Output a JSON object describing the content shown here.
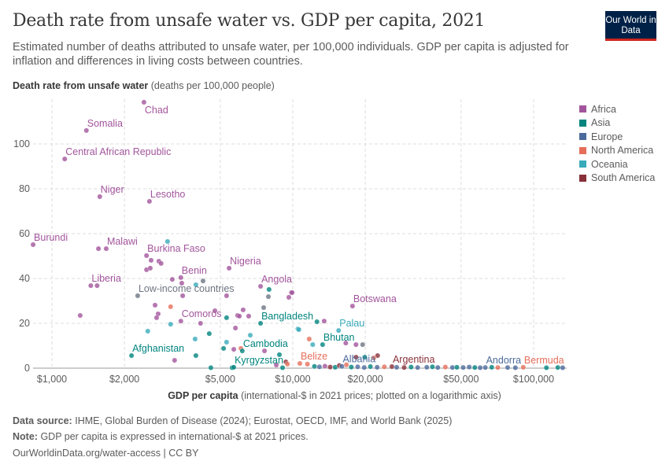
{
  "header": {
    "title": "Death rate from unsafe water vs. GDP per capita, 2021",
    "subtitle": "Estimated number of deaths attributed to unsafe water, per 100,000 individuals. GDP per capita is adjusted for inflation and differences in living costs between countries.",
    "logo": "Our World in Data"
  },
  "colors": {
    "Africa": "#a2559c",
    "Asia": "#00847e",
    "Europe": "#4c6a9c",
    "North America": "#e56e5a",
    "Oceania": "#38aaba",
    "South America": "#883039",
    "Aggregate": "#6e7581"
  },
  "chart_data": {
    "type": "scatter",
    "title": "Death rate from unsafe water vs. GDP per capita, 2021",
    "ylabel": {
      "bold": "Death rate from unsafe water",
      "rest": "(deaths per 100,000 people)"
    },
    "xlabel": {
      "bold": "GDP per capita",
      "rest": "(international-$ in 2021 prices; plotted on a logarithmic axis)"
    },
    "xscale": "log",
    "xlim": [
      810,
      137000
    ],
    "ylim": [
      0,
      120
    ],
    "grid": true,
    "legend_position": "right",
    "xticks": [
      {
        "v": 1000,
        "l": "$1,000"
      },
      {
        "v": 2000,
        "l": "$2,000"
      },
      {
        "v": 5000,
        "l": "$5,000"
      },
      {
        "v": 10000,
        "l": "$10,000"
      },
      {
        "v": 20000,
        "l": "$20,000"
      },
      {
        "v": 50000,
        "l": "$50,000"
      },
      {
        "v": 100000,
        "l": "$100,000"
      }
    ],
    "yticks": [
      {
        "v": 0,
        "l": "0"
      },
      {
        "v": 20,
        "l": "20"
      },
      {
        "v": 40,
        "l": "40"
      },
      {
        "v": 60,
        "l": "60"
      },
      {
        "v": 80,
        "l": "80"
      },
      {
        "v": 100,
        "l": "100"
      }
    ],
    "legend": [
      "Africa",
      "Asia",
      "Europe",
      "North America",
      "Oceania",
      "South America"
    ],
    "points": [
      [
        2410,
        118.6,
        "Africa",
        "Chad"
      ],
      [
        1390,
        106,
        "Africa",
        "Somalia"
      ],
      [
        1130,
        93.3,
        "Africa",
        "Central African Republic"
      ],
      [
        1580,
        76.5,
        "Africa",
        "Niger"
      ],
      [
        2540,
        74.4,
        "Africa",
        "Lesotho"
      ],
      [
        835,
        55.1,
        "Africa",
        "Burundi"
      ],
      [
        1680,
        53.3,
        "Africa",
        "Malawi"
      ],
      [
        1560,
        53.3,
        "Africa",
        ""
      ],
      [
        2470,
        50.2,
        "Africa",
        "Burkina Faso"
      ],
      [
        3020,
        56.5,
        "Oceania",
        ""
      ],
      [
        2580,
        48.1,
        "Africa",
        ""
      ],
      [
        2780,
        47.7,
        "Africa",
        ""
      ],
      [
        2840,
        46.7,
        "Africa",
        ""
      ],
      [
        2470,
        43.9,
        "Africa",
        ""
      ],
      [
        2560,
        44.6,
        "Africa",
        ""
      ],
      [
        5440,
        44.6,
        "Africa",
        "Nigeria"
      ],
      [
        3160,
        39.6,
        "Africa",
        ""
      ],
      [
        3430,
        40.4,
        "Africa",
        "Benin"
      ],
      [
        3460,
        37.9,
        "Africa",
        ""
      ],
      [
        4240,
        38.9,
        "Aggregate",
        ""
      ],
      [
        3960,
        37.2,
        "Oceania",
        ""
      ],
      [
        1450,
        36.8,
        "Africa",
        "Liberia"
      ],
      [
        1540,
        36.8,
        "Africa",
        ""
      ],
      [
        2270,
        32.3,
        "Aggregate",
        "Low-income countries"
      ],
      [
        3490,
        32.3,
        "Africa",
        ""
      ],
      [
        1310,
        23.5,
        "Africa",
        ""
      ],
      [
        2680,
        28.1,
        "Africa",
        ""
      ],
      [
        3110,
        27.4,
        "North America",
        ""
      ],
      [
        2760,
        24.2,
        "Africa",
        ""
      ],
      [
        2720,
        22.5,
        "Africa",
        ""
      ],
      [
        4750,
        25.6,
        "Africa",
        ""
      ],
      [
        5310,
        32.3,
        "Africa",
        ""
      ],
      [
        7350,
        36.5,
        "Africa",
        "Angola"
      ],
      [
        7970,
        35.1,
        "Asia",
        ""
      ],
      [
        7920,
        31.9,
        "Aggregate",
        ""
      ],
      [
        9860,
        33.7,
        "Africa",
        ""
      ],
      [
        9630,
        31.6,
        "Africa",
        ""
      ],
      [
        7570,
        27,
        "Aggregate",
        ""
      ],
      [
        3430,
        21,
        "Africa",
        "Comoros"
      ],
      [
        4140,
        20,
        "Africa",
        ""
      ],
      [
        5310,
        22.5,
        "Asia",
        ""
      ],
      [
        5900,
        23.5,
        "Africa",
        ""
      ],
      [
        6000,
        23.2,
        "Africa",
        ""
      ],
      [
        6220,
        26,
        "Africa",
        ""
      ],
      [
        6560,
        23.2,
        "Africa",
        ""
      ],
      [
        7350,
        20,
        "Asia",
        "Bangladesh"
      ],
      [
        2500,
        16.5,
        "Oceania",
        ""
      ],
      [
        3110,
        19.6,
        "Oceania",
        ""
      ],
      [
        5780,
        17.9,
        "Africa",
        ""
      ],
      [
        4500,
        15.4,
        "Asia",
        ""
      ],
      [
        3930,
        13,
        "Oceania",
        ""
      ],
      [
        6660,
        14.7,
        "Oceania",
        ""
      ],
      [
        5310,
        11.6,
        "Oceania",
        ""
      ],
      [
        5690,
        8.4,
        "Africa",
        ""
      ],
      [
        6090,
        8.8,
        "North America",
        ""
      ],
      [
        6170,
        7.7,
        "Asia",
        "Cambodia"
      ],
      [
        5160,
        8.8,
        "Asia",
        ""
      ],
      [
        7630,
        7.7,
        "Africa",
        ""
      ],
      [
        2140,
        5.6,
        "Asia",
        "Afghanistan"
      ],
      [
        3230,
        3.5,
        "Africa",
        ""
      ],
      [
        3960,
        5.6,
        "Asia",
        ""
      ],
      [
        8800,
        6,
        "Asia",
        ""
      ],
      [
        9360,
        2.8,
        "South America",
        ""
      ],
      [
        9500,
        1.8,
        "North America",
        ""
      ],
      [
        8540,
        1.4,
        "Africa",
        ""
      ],
      [
        4570,
        0.2,
        "Asia",
        ""
      ],
      [
        5600,
        0.2,
        "Asia",
        ""
      ],
      [
        5690,
        0.4,
        "Asia",
        "Kyrgyzstan"
      ],
      [
        9070,
        0.2,
        "Asia",
        ""
      ],
      [
        10500,
        17.5,
        "Oceania",
        ""
      ],
      [
        9930,
        33.7,
        "Africa",
        ""
      ],
      [
        17700,
        27.7,
        "Africa",
        "Botswana"
      ],
      [
        12600,
        20.7,
        "Asia",
        ""
      ],
      [
        13500,
        21,
        "Africa",
        ""
      ],
      [
        10600,
        17.2,
        "Oceania",
        ""
      ],
      [
        15500,
        16.8,
        "Oceania",
        "Palau"
      ],
      [
        11700,
        13,
        "North America",
        ""
      ],
      [
        12100,
        10.5,
        "Oceania",
        ""
      ],
      [
        13300,
        10.5,
        "Asia",
        "Bhutan"
      ],
      [
        16600,
        11.2,
        "Africa",
        ""
      ],
      [
        18300,
        10.5,
        "Africa",
        ""
      ],
      [
        19500,
        10.5,
        "Aggregate",
        ""
      ],
      [
        10700,
        2.1,
        "North America",
        "Belize"
      ],
      [
        11500,
        1.8,
        "North America",
        ""
      ],
      [
        22500,
        5.6,
        "South America",
        ""
      ],
      [
        18300,
        4.9,
        "South America",
        ""
      ],
      [
        19900,
        4.9,
        "Asia",
        ""
      ],
      [
        21700,
        4.6,
        "North America",
        ""
      ],
      [
        12300,
        0.8,
        "Asia",
        ""
      ],
      [
        12900,
        0.6,
        "Europe",
        ""
      ],
      [
        13600,
        0.9,
        "Africa",
        ""
      ],
      [
        14300,
        0.5,
        "South America",
        ""
      ],
      [
        15000,
        0.4,
        "Asia",
        ""
      ],
      [
        15600,
        1.2,
        "South America",
        ""
      ],
      [
        16000,
        0.8,
        "Europe",
        "Albania"
      ],
      [
        16700,
        1.5,
        "North America",
        ""
      ],
      [
        17500,
        0.5,
        "Asia",
        ""
      ],
      [
        18600,
        0.6,
        "Europe",
        ""
      ],
      [
        19800,
        0.3,
        "Europe",
        ""
      ],
      [
        21000,
        0.7,
        "Asia",
        ""
      ],
      [
        22400,
        0.4,
        "Europe",
        ""
      ],
      [
        24000,
        0.6,
        "North America",
        ""
      ],
      [
        25800,
        0.7,
        "South America",
        "Argentina"
      ],
      [
        27000,
        0.4,
        "Europe",
        ""
      ],
      [
        29000,
        0.3,
        "South America",
        ""
      ],
      [
        31000,
        0.5,
        "Asia",
        ""
      ],
      [
        33000,
        0.3,
        "Europe",
        ""
      ],
      [
        36000,
        0.4,
        "Europe",
        ""
      ],
      [
        38000,
        0.6,
        "Asia",
        ""
      ],
      [
        40000,
        0.3,
        "Europe",
        ""
      ],
      [
        43000,
        0.5,
        "North America",
        ""
      ],
      [
        46000,
        0.3,
        "Europe",
        ""
      ],
      [
        48000,
        0.4,
        "Asia",
        ""
      ],
      [
        51000,
        0.3,
        "Europe",
        ""
      ],
      [
        54000,
        0.5,
        "Europe",
        ""
      ],
      [
        57000,
        0.3,
        "Asia",
        ""
      ],
      [
        60000,
        0.2,
        "Europe",
        ""
      ],
      [
        63000,
        0.3,
        "Europe",
        "Andorra"
      ],
      [
        67000,
        0.4,
        "Asia",
        ""
      ],
      [
        71000,
        0.3,
        "North America",
        ""
      ],
      [
        78000,
        0.3,
        "Europe",
        ""
      ],
      [
        84000,
        0.2,
        "Europe",
        ""
      ],
      [
        90600,
        0.4,
        "North America",
        "Bermuda"
      ],
      [
        113000,
        0.2,
        "Asia",
        ""
      ],
      [
        126000,
        0.3,
        "Asia",
        ""
      ],
      [
        132000,
        0.2,
        "Europe",
        ""
      ]
    ]
  },
  "footer": {
    "source_label": "Data source:",
    "source": "IHME, Global Burden of Disease (2024); Eurostat, OECD, IMF, and World Bank (2025)",
    "note_label": "Note:",
    "note": "GDP per capita is expressed in international-$ at 2021 prices.",
    "link": "OurWorldinData.org/water-access | CC BY"
  }
}
